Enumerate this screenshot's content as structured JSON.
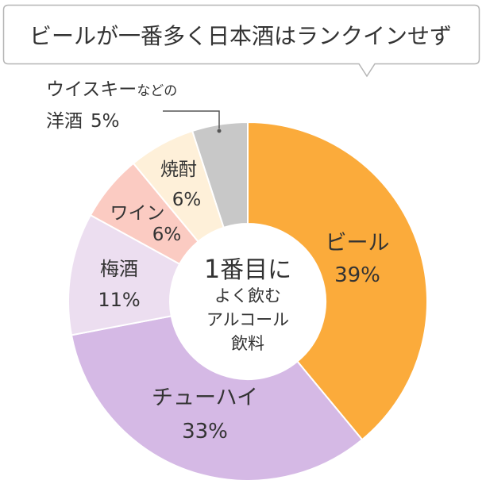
{
  "colors": {
    "text": "#333333",
    "callout_border": "#b5b5b5",
    "leader_line": "#555555",
    "center_fill": "#ffffff"
  },
  "callout": {
    "title": "ビールが一番多く日本酒はランクインせず"
  },
  "center_label": {
    "number": "1",
    "lines": [
      "番目に",
      "よく飲む",
      "アルコール",
      "飲料"
    ]
  },
  "chart_data": {
    "type": "pie",
    "donut": true,
    "title": "",
    "slices": [
      {
        "label": "ビール",
        "value": 39,
        "value_label": "39%",
        "color": "#fbab3b"
      },
      {
        "label": "チューハイ",
        "value": 33,
        "value_label": "33%",
        "color": "#d5b9e5"
      },
      {
        "label": "梅酒",
        "value": 11,
        "value_label": "11%",
        "color": "#ecdef0"
      },
      {
        "label": "ワイン",
        "value": 6,
        "value_label": "6%",
        "color": "#fbcbc2"
      },
      {
        "label": "焼酎",
        "value": 6,
        "value_label": "6%",
        "color": "#fef0d9"
      },
      {
        "label_main": "ウイスキー",
        "label_suffix": "などの",
        "label_line2": "洋酒",
        "value": 5,
        "value_label": "5%",
        "color": "#c8c8c8"
      }
    ]
  }
}
